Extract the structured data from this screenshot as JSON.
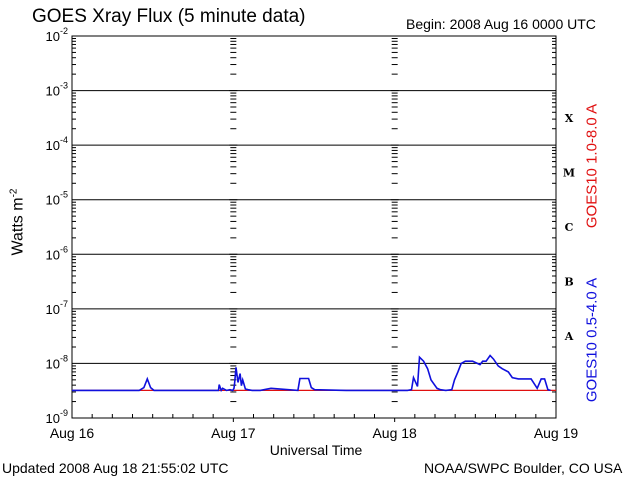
{
  "header": {
    "title": "GOES Xray Flux (5 minute data)",
    "begin": "Begin:  2008 Aug 16 0000 UTC"
  },
  "footer": {
    "updated": "Updated 2008 Aug 18 21:55:02 UTC",
    "credit": "NOAA/SWPC Boulder, CO USA"
  },
  "chart_data": {
    "type": "line",
    "title": "GOES Xray Flux (5 minute data)",
    "xlabel": "Universal Time",
    "ylabel": "Watts m",
    "ylabel_superscript": "-2",
    "yscale": "log",
    "ylim": [
      1e-09,
      0.01
    ],
    "xlim": [
      0,
      72
    ],
    "x_units": "hours since 2008 Aug 16 0000 UTC",
    "x_ticks": [
      {
        "x": 0,
        "label": "Aug 16"
      },
      {
        "x": 24,
        "label": "Aug 17"
      },
      {
        "x": 48,
        "label": "Aug 18"
      },
      {
        "x": 72,
        "label": "Aug 19"
      }
    ],
    "y_ticks": [
      {
        "exp": -9,
        "label_base": "10",
        "label_exp": "-9"
      },
      {
        "exp": -8,
        "label_base": "10",
        "label_exp": "-8"
      },
      {
        "exp": -7,
        "label_base": "10",
        "label_exp": "-7"
      },
      {
        "exp": -6,
        "label_base": "10",
        "label_exp": "-6"
      },
      {
        "exp": -5,
        "label_base": "10",
        "label_exp": "-5"
      },
      {
        "exp": -4,
        "label_base": "10",
        "label_exp": "-4"
      },
      {
        "exp": -3,
        "label_base": "10",
        "label_exp": "-3"
      },
      {
        "exp": -2,
        "label_base": "10",
        "label_exp": "-2"
      }
    ],
    "flare_classes": [
      {
        "label": "A",
        "exp": -7.5
      },
      {
        "label": "B",
        "exp": -6.5
      },
      {
        "label": "C",
        "exp": -5.5
      },
      {
        "label": "M",
        "exp": -4.5
      },
      {
        "label": "X",
        "exp": -3.5
      }
    ],
    "series": [
      {
        "name": "GOES10 1.0-8.0 A",
        "color": "#e01010",
        "x": [
          0,
          72
        ],
        "y": [
          3.2e-09,
          3.2e-09
        ]
      },
      {
        "name": "GOES10 0.5-4.0 A",
        "color": "#1010dd",
        "x": [
          0,
          10,
          10.7,
          11.2,
          11.7,
          12.2,
          13,
          21.8,
          21.9,
          22.2,
          22.4,
          23,
          23.5,
          23.9,
          24.1,
          24.2,
          24.4,
          24.7,
          25,
          25.2,
          25.4,
          25.8,
          26.2,
          26.8,
          28,
          29.6,
          33.6,
          33.9,
          34.5,
          34.8,
          35.2,
          35.6,
          36.1,
          40.8,
          43.6,
          44.2,
          44.6,
          45.3,
          45.6,
          46.5,
          47.2,
          48.4,
          49.9,
          50.5,
          50.8,
          51.4,
          51.7,
          52.3,
          52.9,
          53.4,
          54.3,
          54.8,
          55.6,
          56.5,
          56.9,
          57.4,
          57.9,
          58.5,
          59.6,
          60.7,
          61.1,
          61.6,
          62.2,
          62.7,
          63.4,
          64,
          64.9,
          65.5,
          66.4,
          67.3,
          68.3,
          69.2,
          69.8,
          70.3,
          70.8,
          71.2
        ],
        "y": [
          3.2e-09,
          3.2e-09,
          3.6e-09,
          5.2e-09,
          3.6e-09,
          3.2e-09,
          3.2e-09,
          3.2e-09,
          4.1e-09,
          3.2e-09,
          3.5e-09,
          3.2e-09,
          3.3e-09,
          3.2e-09,
          3.5e-09,
          4.5e-09,
          8.5e-09,
          4.5e-09,
          6.5e-09,
          3.9e-09,
          5e-09,
          3.4e-09,
          3.3e-09,
          3.2e-09,
          3.2e-09,
          3.5e-09,
          3.2e-09,
          5.3e-09,
          5.3e-09,
          5.3e-09,
          5.3e-09,
          3.6e-09,
          3.3e-09,
          3.2e-09,
          3.2e-09,
          3.2e-09,
          3.2e-09,
          3.2e-09,
          3.2e-09,
          3.2e-09,
          3.2e-09,
          3.2e-09,
          3.2e-09,
          3.3e-09,
          5.5e-09,
          3.8e-09,
          1.3e-08,
          1.1e-08,
          8e-09,
          5e-09,
          3.5e-09,
          3.3e-09,
          3.2e-09,
          3.3e-09,
          5e-09,
          7e-09,
          1e-08,
          1.1e-08,
          1.1e-08,
          9.5e-09,
          1.1e-08,
          1.1e-08,
          1.4e-08,
          1.2e-08,
          9e-09,
          8e-09,
          7e-09,
          5.5e-09,
          5.2e-09,
          5.2e-09,
          5.2e-09,
          3.5e-09,
          5.2e-09,
          5.2e-09,
          3.3e-09,
          3.2e-09
        ]
      }
    ],
    "grid": "horizontal lines at each decade",
    "legend": "right side, rotated labels"
  }
}
